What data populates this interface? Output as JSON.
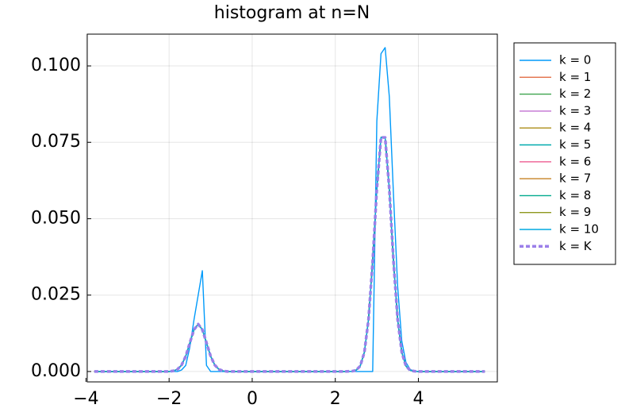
{
  "chart_data": {
    "type": "line",
    "title": "histogram at n=N",
    "x": [
      -3.8,
      -2.0,
      -1.9,
      -1.8,
      -1.7,
      -1.6,
      -1.5,
      -1.4,
      -1.3,
      -1.2,
      -1.1,
      -1.0,
      -0.9,
      -0.8,
      -0.7,
      -0.6,
      2.2,
      2.4,
      2.5,
      2.6,
      2.7,
      2.8,
      2.9,
      3.0,
      3.1,
      3.2,
      3.3,
      3.4,
      3.5,
      3.6,
      3.7,
      3.8,
      3.9,
      4.0,
      5.6
    ],
    "series": [
      {
        "name": "k = 0",
        "color": "#009AFA",
        "values": [
          0,
          0,
          0,
          0,
          0.0005,
          0.002,
          0.008,
          0.017,
          0.025,
          0.033,
          0.002,
          0,
          0,
          0,
          0,
          0,
          0,
          0,
          0,
          0,
          0,
          0,
          0,
          0.082,
          0.104,
          0.106,
          0.09,
          0.058,
          0.028,
          0.01,
          0.003,
          0.0007,
          0,
          0,
          0
        ]
      },
      {
        "name": "k = 1",
        "color": "#E36F47",
        "values": [
          0,
          0,
          0.0002,
          0.0007,
          0.0021,
          0.005,
          0.0094,
          0.0137,
          0.0155,
          0.0137,
          0.0094,
          0.005,
          0.0021,
          0.0007,
          0.0002,
          0,
          0,
          0.0001,
          0.0004,
          0.0018,
          0.0063,
          0.0171,
          0.0362,
          0.0597,
          0.0766,
          0.0766,
          0.0597,
          0.0362,
          0.0171,
          0.0063,
          0.0018,
          0.0004,
          0.0001,
          0,
          0
        ]
      },
      {
        "name": "k = 2",
        "color": "#3EA44E",
        "values": [
          0,
          0,
          0.0002,
          0.0007,
          0.0021,
          0.005,
          0.0094,
          0.0137,
          0.0155,
          0.0137,
          0.0094,
          0.005,
          0.0021,
          0.0007,
          0.0002,
          0,
          0,
          0.0001,
          0.0004,
          0.0018,
          0.0063,
          0.0171,
          0.0362,
          0.0597,
          0.0766,
          0.0766,
          0.0597,
          0.0362,
          0.0171,
          0.0063,
          0.0018,
          0.0004,
          0.0001,
          0,
          0
        ]
      },
      {
        "name": "k = 3",
        "color": "#C271D2",
        "values": [
          0,
          0,
          0.0002,
          0.0007,
          0.0021,
          0.005,
          0.0094,
          0.0137,
          0.0155,
          0.0137,
          0.0094,
          0.005,
          0.0021,
          0.0007,
          0.0002,
          0,
          0,
          0.0001,
          0.0004,
          0.0018,
          0.0063,
          0.0171,
          0.0362,
          0.0597,
          0.0766,
          0.0766,
          0.0597,
          0.0362,
          0.0171,
          0.0063,
          0.0018,
          0.0004,
          0.0001,
          0,
          0
        ]
      },
      {
        "name": "k = 4",
        "color": "#AC8E18",
        "values": [
          0,
          0,
          0.0002,
          0.0007,
          0.0021,
          0.005,
          0.0094,
          0.0137,
          0.0155,
          0.0137,
          0.0094,
          0.005,
          0.0021,
          0.0007,
          0.0002,
          0,
          0,
          0.0001,
          0.0004,
          0.0018,
          0.0063,
          0.0171,
          0.0362,
          0.0597,
          0.0766,
          0.0766,
          0.0597,
          0.0362,
          0.0171,
          0.0063,
          0.0018,
          0.0004,
          0.0001,
          0,
          0
        ]
      },
      {
        "name": "k = 5",
        "color": "#00AAAE",
        "values": [
          0,
          0,
          0.0002,
          0.0007,
          0.0021,
          0.005,
          0.0094,
          0.0137,
          0.0155,
          0.0137,
          0.0094,
          0.005,
          0.0021,
          0.0007,
          0.0002,
          0,
          0,
          0.0001,
          0.0004,
          0.0018,
          0.0063,
          0.0171,
          0.0362,
          0.0597,
          0.0766,
          0.0766,
          0.0597,
          0.0362,
          0.0171,
          0.0063,
          0.0018,
          0.0004,
          0.0001,
          0,
          0
        ]
      },
      {
        "name": "k = 6",
        "color": "#ED5E93",
        "values": [
          0,
          0,
          0.0002,
          0.0007,
          0.0021,
          0.005,
          0.0094,
          0.0137,
          0.0155,
          0.0137,
          0.0094,
          0.005,
          0.0021,
          0.0007,
          0.0002,
          0,
          0,
          0.0001,
          0.0004,
          0.0018,
          0.0063,
          0.0171,
          0.0362,
          0.0597,
          0.0766,
          0.0766,
          0.0597,
          0.0362,
          0.0171,
          0.0063,
          0.0018,
          0.0004,
          0.0001,
          0,
          0
        ]
      },
      {
        "name": "k = 7",
        "color": "#C68225",
        "values": [
          0,
          0,
          0.0002,
          0.0007,
          0.0021,
          0.005,
          0.0094,
          0.0137,
          0.0155,
          0.0137,
          0.0094,
          0.005,
          0.0021,
          0.0007,
          0.0002,
          0,
          0,
          0.0001,
          0.0004,
          0.0018,
          0.0063,
          0.0171,
          0.0362,
          0.0597,
          0.0766,
          0.0766,
          0.0597,
          0.0362,
          0.0171,
          0.0063,
          0.0018,
          0.0004,
          0.0001,
          0,
          0
        ]
      },
      {
        "name": "k = 8",
        "color": "#00A98D",
        "values": [
          0,
          0,
          0.0002,
          0.0007,
          0.0021,
          0.005,
          0.0094,
          0.0137,
          0.0155,
          0.0137,
          0.0094,
          0.005,
          0.0021,
          0.0007,
          0.0002,
          0,
          0,
          0.0001,
          0.0004,
          0.0018,
          0.0063,
          0.0171,
          0.0362,
          0.0597,
          0.0766,
          0.0766,
          0.0597,
          0.0362,
          0.0171,
          0.0063,
          0.0018,
          0.0004,
          0.0001,
          0,
          0
        ]
      },
      {
        "name": "k = 9",
        "color": "#8E971E",
        "values": [
          0,
          0,
          0.0002,
          0.0007,
          0.0021,
          0.005,
          0.0094,
          0.0137,
          0.0155,
          0.0137,
          0.0094,
          0.005,
          0.0021,
          0.0007,
          0.0002,
          0,
          0,
          0.0001,
          0.0004,
          0.0018,
          0.0063,
          0.0171,
          0.0362,
          0.0597,
          0.0766,
          0.0766,
          0.0597,
          0.0362,
          0.0171,
          0.0063,
          0.0018,
          0.0004,
          0.0001,
          0,
          0
        ]
      },
      {
        "name": "k = 10",
        "color": "#00A9E0",
        "values": [
          0,
          0,
          0.0002,
          0.0007,
          0.0021,
          0.005,
          0.0094,
          0.0137,
          0.0155,
          0.0137,
          0.0094,
          0.005,
          0.0021,
          0.0007,
          0.0002,
          0,
          0,
          0.0001,
          0.0004,
          0.0018,
          0.0063,
          0.0171,
          0.0362,
          0.0597,
          0.0766,
          0.0766,
          0.0597,
          0.0362,
          0.0171,
          0.0063,
          0.0018,
          0.0004,
          0.0001,
          0,
          0
        ]
      },
      {
        "name": "k = K",
        "color": "#9B7FE9",
        "dashed": true,
        "line_width": 3.5,
        "values": [
          0,
          0,
          0.0002,
          0.0007,
          0.0021,
          0.005,
          0.0094,
          0.0137,
          0.0155,
          0.0137,
          0.0094,
          0.005,
          0.0021,
          0.0007,
          0.0002,
          0,
          0,
          0.0001,
          0.0004,
          0.0018,
          0.0063,
          0.0171,
          0.0362,
          0.0597,
          0.0766,
          0.0766,
          0.0597,
          0.0362,
          0.0171,
          0.0063,
          0.0018,
          0.0004,
          0.0001,
          0,
          0
        ]
      }
    ],
    "xlim": [
      -3.97,
      5.9
    ],
    "ylim": [
      -0.0034,
      0.1104
    ],
    "xticks": [
      {
        "value": -4,
        "label": "−4"
      },
      {
        "value": -2,
        "label": "−2"
      },
      0,
      2,
      4
    ],
    "yticks": [
      {
        "value": 0,
        "label": "0.000"
      },
      {
        "value": 0.025,
        "label": "0.025"
      },
      {
        "value": 0.05,
        "label": "0.050"
      },
      {
        "value": 0.075,
        "label": "0.075"
      },
      {
        "value": 0.1,
        "label": "0.100"
      }
    ],
    "grid": true,
    "legend": "outside-right"
  }
}
